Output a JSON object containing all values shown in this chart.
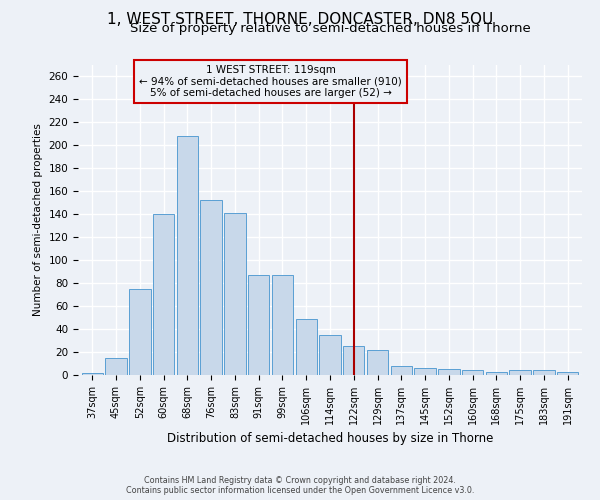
{
  "title": "1, WEST STREET, THORNE, DONCASTER, DN8 5QU",
  "subtitle": "Size of property relative to semi-detached houses in Thorne",
  "xlabel": "Distribution of semi-detached houses by size in Thorne",
  "ylabel": "Number of semi-detached properties",
  "categories": [
    "37sqm",
    "45sqm",
    "52sqm",
    "60sqm",
    "68sqm",
    "76sqm",
    "83sqm",
    "91sqm",
    "99sqm",
    "106sqm",
    "114sqm",
    "122sqm",
    "129sqm",
    "137sqm",
    "145sqm",
    "152sqm",
    "160sqm",
    "168sqm",
    "175sqm",
    "183sqm",
    "191sqm"
  ],
  "values": [
    2,
    15,
    75,
    140,
    208,
    152,
    141,
    87,
    87,
    49,
    35,
    25,
    22,
    8,
    6,
    5,
    4,
    3,
    4,
    4,
    3
  ],
  "bar_color": "#c8d8ea",
  "bar_edge_color": "#5a9fd4",
  "vline_x": 11.0,
  "vline_color": "#aa0000",
  "annotation_title": "1 WEST STREET: 119sqm",
  "annotation_line1": "← 94% of semi-detached houses are smaller (910)",
  "annotation_line2": "5% of semi-detached houses are larger (52) →",
  "annotation_box_color": "#cc0000",
  "footer1": "Contains HM Land Registry data © Crown copyright and database right 2024.",
  "footer2": "Contains public sector information licensed under the Open Government Licence v3.0.",
  "ylim": [
    0,
    270
  ],
  "yticks": [
    0,
    20,
    40,
    60,
    80,
    100,
    120,
    140,
    160,
    180,
    200,
    220,
    240,
    260
  ],
  "background_color": "#edf1f7",
  "grid_color": "#ffffff",
  "title_fontsize": 11,
  "subtitle_fontsize": 9.5
}
